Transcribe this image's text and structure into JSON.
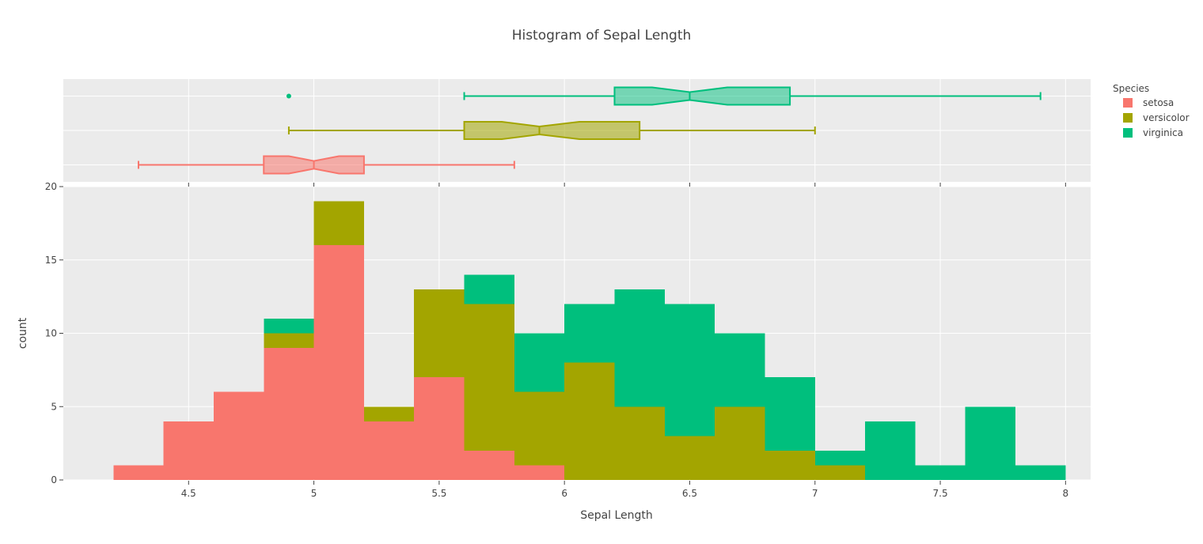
{
  "chart_data": {
    "type": "histogram",
    "title": "Histogram of Sepal Length",
    "xlabel": "Sepal Length",
    "ylabel": "count",
    "xlim": [
      4.0,
      8.1
    ],
    "ylim": [
      0,
      20
    ],
    "x_ticks": [
      4.5,
      5,
      5.5,
      6,
      6.5,
      7,
      7.5,
      8
    ],
    "y_ticks": [
      0,
      5,
      10,
      15,
      20
    ],
    "barmode": "stack",
    "grid": true,
    "legend": {
      "title": "Species",
      "placement": "top-right"
    },
    "bin_edges": [
      4.2,
      4.4,
      4.6,
      4.8,
      5.0,
      5.2,
      5.4,
      5.6,
      5.8,
      6.0,
      6.2,
      6.4,
      6.6,
      6.8,
      7.0,
      7.2,
      7.4,
      7.6,
      7.8,
      8.0
    ],
    "series": [
      {
        "name": "setosa",
        "color": "#F8766D",
        "values": [
          1,
          4,
          6,
          9,
          16,
          4,
          7,
          2,
          1,
          0,
          0,
          0,
          0,
          0,
          0,
          0,
          0,
          0,
          0
        ]
      },
      {
        "name": "versicolor",
        "color": "#A3A500",
        "values": [
          0,
          0,
          0,
          1,
          3,
          1,
          6,
          10,
          5,
          8,
          5,
          3,
          5,
          2,
          1,
          0,
          0,
          0,
          0
        ]
      },
      {
        "name": "virginica",
        "color": "#00BF7D",
        "values": [
          0,
          0,
          0,
          1,
          0,
          0,
          0,
          2,
          4,
          4,
          8,
          9,
          5,
          5,
          1,
          4,
          1,
          5,
          1
        ]
      }
    ],
    "marginal_box": [
      {
        "name": "virginica",
        "color": "#00BF7D",
        "fill": "rgba(0,191,125,0.5)",
        "min": 5.6,
        "q1": 6.2,
        "median": 6.5,
        "q3": 6.9,
        "max": 7.9,
        "notch_low": 6.35,
        "notch_high": 6.65,
        "outliers": [
          4.9
        ]
      },
      {
        "name": "versicolor",
        "color": "#A3A500",
        "fill": "rgba(163,165,0,0.55)",
        "min": 4.9,
        "q1": 5.6,
        "median": 5.9,
        "q3": 6.3,
        "max": 7.0,
        "notch_low": 5.75,
        "notch_high": 6.06,
        "outliers": []
      },
      {
        "name": "setosa",
        "color": "#F8766D",
        "fill": "rgba(248,118,109,0.55)",
        "min": 4.3,
        "q1": 4.8,
        "median": 5.0,
        "q3": 5.2,
        "max": 5.8,
        "notch_low": 4.9,
        "notch_high": 5.1,
        "outliers": []
      }
    ]
  }
}
